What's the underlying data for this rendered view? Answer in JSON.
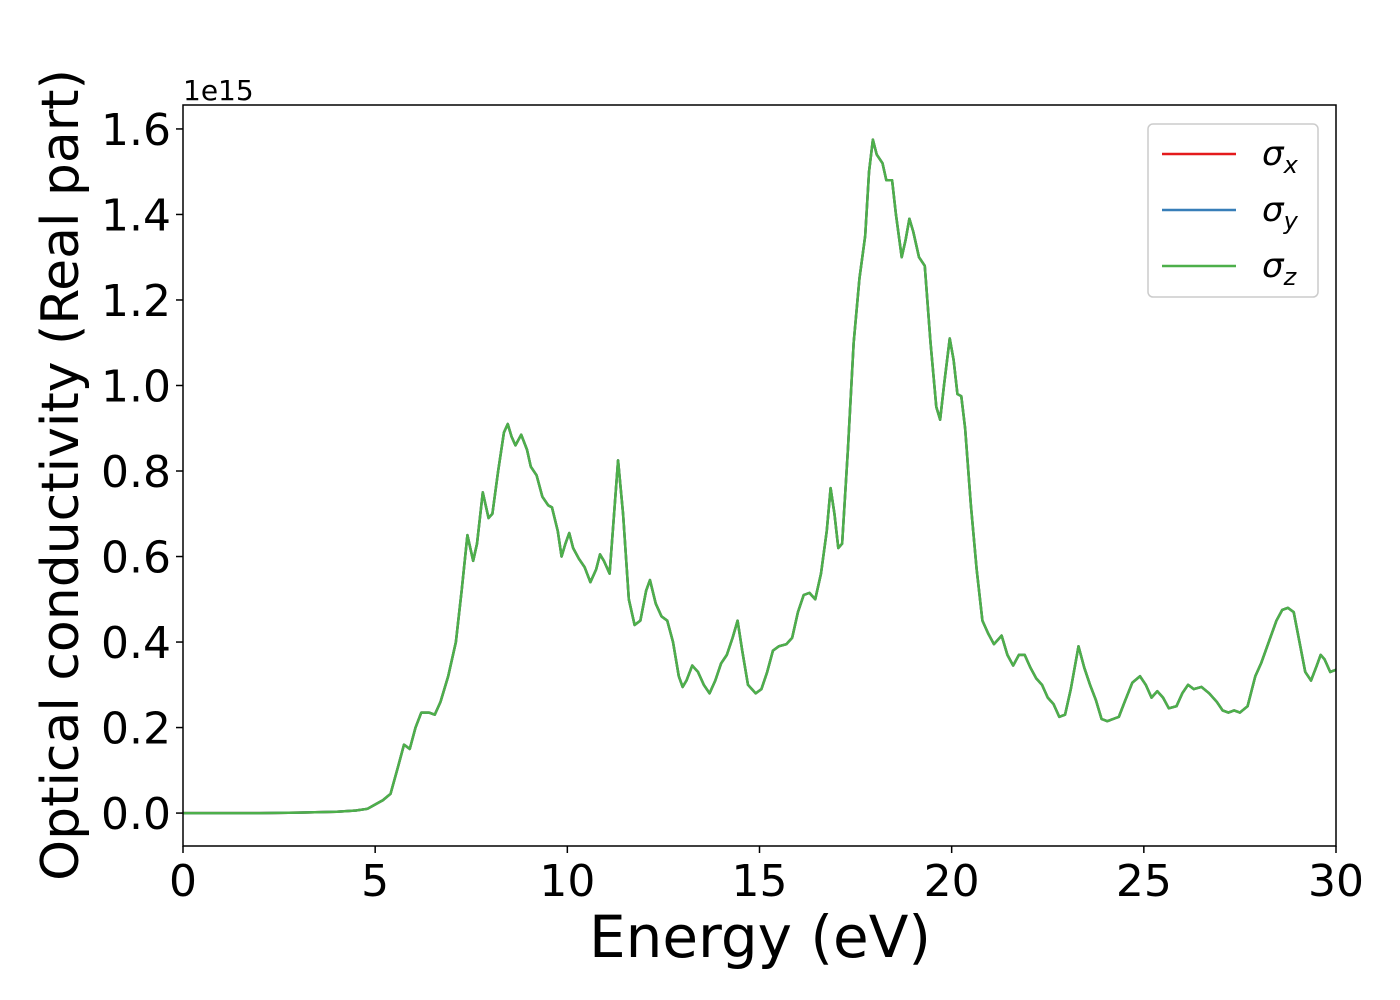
{
  "chart_data": {
    "type": "line",
    "ylabel": "Optical conductivity (Real part)",
    "xlabel": "Energy (eV)",
    "y_offset_text": "1e15",
    "xlim": [
      0,
      30
    ],
    "xticks": [
      0,
      5,
      10,
      15,
      20,
      25,
      30
    ],
    "ylim": [
      -0.077,
      1.656
    ],
    "yticks": [
      {
        "value": 0,
        "label": "0.0"
      },
      0.2,
      0.4,
      0.6,
      0.8,
      {
        "value": 1,
        "label": "1.0"
      },
      1.2,
      1.4,
      1.6
    ],
    "legend": "upper right",
    "x": [
      0,
      1,
      2,
      3,
      4,
      4.5,
      4.8,
      5.0,
      5.2,
      5.4,
      5.6,
      5.75,
      5.9,
      6.05,
      6.2,
      6.4,
      6.55,
      6.7,
      6.9,
      7.1,
      7.25,
      7.4,
      7.55,
      7.65,
      7.8,
      7.95,
      8.05,
      8.2,
      8.35,
      8.45,
      8.55,
      8.65,
      8.8,
      8.95,
      9.05,
      9.2,
      9.35,
      9.5,
      9.6,
      9.75,
      9.85,
      9.95,
      10.05,
      10.15,
      10.3,
      10.45,
      10.6,
      10.75,
      10.85,
      10.95,
      11.1,
      11.2,
      11.32,
      11.45,
      11.6,
      11.75,
      11.9,
      12.05,
      12.15,
      12.3,
      12.45,
      12.6,
      12.75,
      12.9,
      13.0,
      13.1,
      13.25,
      13.4,
      13.55,
      13.7,
      13.85,
      14.0,
      14.15,
      14.3,
      14.43,
      14.55,
      14.7,
      14.9,
      15.05,
      15.2,
      15.35,
      15.5,
      15.7,
      15.85,
      16.0,
      16.15,
      16.3,
      16.45,
      16.6,
      16.75,
      16.85,
      16.95,
      17.05,
      17.15,
      17.3,
      17.45,
      17.6,
      17.75,
      17.85,
      17.95,
      18.05,
      18.2,
      18.3,
      18.45,
      18.55,
      18.7,
      18.8,
      18.9,
      19.0,
      19.15,
      19.3,
      19.45,
      19.6,
      19.7,
      19.8,
      19.95,
      20.05,
      20.15,
      20.25,
      20.35,
      20.5,
      20.65,
      20.8,
      20.95,
      21.1,
      21.3,
      21.45,
      21.6,
      21.75,
      21.9,
      22.05,
      22.2,
      22.35,
      22.5,
      22.65,
      22.8,
      22.95,
      23.1,
      23.3,
      23.45,
      23.6,
      23.75,
      23.9,
      24.05,
      24.2,
      24.35,
      24.5,
      24.7,
      24.9,
      25.05,
      25.2,
      25.35,
      25.5,
      25.65,
      25.85,
      26.0,
      26.15,
      26.3,
      26.5,
      26.7,
      26.9,
      27.05,
      27.2,
      27.35,
      27.5,
      27.7,
      27.9,
      28.05,
      28.25,
      28.45,
      28.6,
      28.75,
      28.9,
      29.05,
      29.2,
      29.35,
      29.5,
      29.6,
      29.7,
      29.85,
      30.0
    ],
    "series": [
      {
        "name": "σx",
        "color": "#e41a1c",
        "values": [
          0,
          0,
          0,
          0.001,
          0.003,
          0.006,
          0.01,
          0.02,
          0.03,
          0.045,
          0.11,
          0.16,
          0.15,
          0.2,
          0.235,
          0.235,
          0.23,
          0.26,
          0.32,
          0.4,
          0.52,
          0.65,
          0.59,
          0.63,
          0.75,
          0.69,
          0.7,
          0.8,
          0.89,
          0.91,
          0.88,
          0.86,
          0.885,
          0.85,
          0.81,
          0.79,
          0.74,
          0.72,
          0.715,
          0.66,
          0.6,
          0.63,
          0.655,
          0.62,
          0.595,
          0.575,
          0.54,
          0.57,
          0.605,
          0.59,
          0.56,
          0.68,
          0.825,
          0.7,
          0.5,
          0.44,
          0.45,
          0.52,
          0.545,
          0.49,
          0.46,
          0.45,
          0.4,
          0.32,
          0.295,
          0.31,
          0.345,
          0.33,
          0.3,
          0.28,
          0.31,
          0.35,
          0.37,
          0.41,
          0.45,
          0.38,
          0.3,
          0.28,
          0.29,
          0.33,
          0.38,
          0.39,
          0.395,
          0.41,
          0.47,
          0.51,
          0.515,
          0.5,
          0.56,
          0.66,
          0.76,
          0.7,
          0.62,
          0.63,
          0.85,
          1.1,
          1.25,
          1.35,
          1.5,
          1.575,
          1.54,
          1.52,
          1.48,
          1.48,
          1.4,
          1.3,
          1.34,
          1.39,
          1.36,
          1.3,
          1.28,
          1.1,
          0.95,
          0.92,
          1.0,
          1.11,
          1.06,
          0.98,
          0.975,
          0.9,
          0.72,
          0.57,
          0.45,
          0.42,
          0.395,
          0.415,
          0.37,
          0.345,
          0.37,
          0.37,
          0.34,
          0.315,
          0.3,
          0.27,
          0.255,
          0.225,
          0.23,
          0.29,
          0.39,
          0.34,
          0.3,
          0.265,
          0.22,
          0.215,
          0.22,
          0.225,
          0.26,
          0.305,
          0.32,
          0.3,
          0.27,
          0.285,
          0.27,
          0.245,
          0.25,
          0.28,
          0.3,
          0.29,
          0.295,
          0.28,
          0.26,
          0.24,
          0.235,
          0.24,
          0.235,
          0.25,
          0.32,
          0.35,
          0.4,
          0.45,
          0.475,
          0.48,
          0.47,
          0.4,
          0.33,
          0.31,
          0.345,
          0.37,
          0.36,
          0.33,
          0.335
        ]
      },
      {
        "name": "σy",
        "color": "#377eb8",
        "values": [
          0,
          0,
          0,
          0.001,
          0.003,
          0.006,
          0.01,
          0.02,
          0.03,
          0.045,
          0.11,
          0.16,
          0.15,
          0.2,
          0.235,
          0.235,
          0.23,
          0.26,
          0.32,
          0.4,
          0.52,
          0.65,
          0.59,
          0.63,
          0.75,
          0.69,
          0.7,
          0.8,
          0.89,
          0.91,
          0.88,
          0.86,
          0.885,
          0.85,
          0.81,
          0.79,
          0.74,
          0.72,
          0.715,
          0.66,
          0.6,
          0.63,
          0.655,
          0.62,
          0.595,
          0.575,
          0.54,
          0.57,
          0.605,
          0.59,
          0.56,
          0.68,
          0.825,
          0.7,
          0.5,
          0.44,
          0.45,
          0.52,
          0.545,
          0.49,
          0.46,
          0.45,
          0.4,
          0.32,
          0.295,
          0.31,
          0.345,
          0.33,
          0.3,
          0.28,
          0.31,
          0.35,
          0.37,
          0.41,
          0.45,
          0.38,
          0.3,
          0.28,
          0.29,
          0.33,
          0.38,
          0.39,
          0.395,
          0.41,
          0.47,
          0.51,
          0.515,
          0.5,
          0.56,
          0.66,
          0.76,
          0.7,
          0.62,
          0.63,
          0.85,
          1.1,
          1.25,
          1.35,
          1.5,
          1.575,
          1.54,
          1.52,
          1.48,
          1.48,
          1.4,
          1.3,
          1.34,
          1.39,
          1.36,
          1.3,
          1.28,
          1.1,
          0.95,
          0.92,
          1.0,
          1.11,
          1.06,
          0.98,
          0.975,
          0.9,
          0.72,
          0.57,
          0.45,
          0.42,
          0.395,
          0.415,
          0.37,
          0.345,
          0.37,
          0.37,
          0.34,
          0.315,
          0.3,
          0.27,
          0.255,
          0.225,
          0.23,
          0.29,
          0.39,
          0.34,
          0.3,
          0.265,
          0.22,
          0.215,
          0.22,
          0.225,
          0.26,
          0.305,
          0.32,
          0.3,
          0.27,
          0.285,
          0.27,
          0.245,
          0.25,
          0.28,
          0.3,
          0.29,
          0.295,
          0.28,
          0.26,
          0.24,
          0.235,
          0.24,
          0.235,
          0.25,
          0.32,
          0.35,
          0.4,
          0.45,
          0.475,
          0.48,
          0.47,
          0.4,
          0.33,
          0.31,
          0.345,
          0.37,
          0.36,
          0.33,
          0.335
        ]
      },
      {
        "name": "σz",
        "color": "#4daf4a",
        "values": [
          0,
          0,
          0,
          0.001,
          0.003,
          0.006,
          0.01,
          0.02,
          0.03,
          0.045,
          0.11,
          0.16,
          0.15,
          0.2,
          0.235,
          0.235,
          0.23,
          0.26,
          0.32,
          0.4,
          0.52,
          0.65,
          0.59,
          0.63,
          0.75,
          0.69,
          0.7,
          0.8,
          0.89,
          0.91,
          0.88,
          0.86,
          0.885,
          0.85,
          0.81,
          0.79,
          0.74,
          0.72,
          0.715,
          0.66,
          0.6,
          0.63,
          0.655,
          0.62,
          0.595,
          0.575,
          0.54,
          0.57,
          0.605,
          0.59,
          0.56,
          0.68,
          0.825,
          0.7,
          0.5,
          0.44,
          0.45,
          0.52,
          0.545,
          0.49,
          0.46,
          0.45,
          0.4,
          0.32,
          0.295,
          0.31,
          0.345,
          0.33,
          0.3,
          0.28,
          0.31,
          0.35,
          0.37,
          0.41,
          0.45,
          0.38,
          0.3,
          0.28,
          0.29,
          0.33,
          0.38,
          0.39,
          0.395,
          0.41,
          0.47,
          0.51,
          0.515,
          0.5,
          0.56,
          0.66,
          0.76,
          0.7,
          0.62,
          0.63,
          0.85,
          1.1,
          1.25,
          1.35,
          1.5,
          1.575,
          1.54,
          1.52,
          1.48,
          1.48,
          1.4,
          1.3,
          1.34,
          1.39,
          1.36,
          1.3,
          1.28,
          1.1,
          0.95,
          0.92,
          1.0,
          1.11,
          1.06,
          0.98,
          0.975,
          0.9,
          0.72,
          0.57,
          0.45,
          0.42,
          0.395,
          0.415,
          0.37,
          0.345,
          0.37,
          0.37,
          0.34,
          0.315,
          0.3,
          0.27,
          0.255,
          0.225,
          0.23,
          0.29,
          0.39,
          0.34,
          0.3,
          0.265,
          0.22,
          0.215,
          0.22,
          0.225,
          0.26,
          0.305,
          0.32,
          0.3,
          0.27,
          0.285,
          0.27,
          0.245,
          0.25,
          0.28,
          0.3,
          0.29,
          0.295,
          0.28,
          0.26,
          0.24,
          0.235,
          0.24,
          0.235,
          0.25,
          0.32,
          0.35,
          0.4,
          0.45,
          0.475,
          0.48,
          0.47,
          0.4,
          0.33,
          0.31,
          0.345,
          0.37,
          0.36,
          0.33,
          0.335
        ]
      }
    ]
  }
}
